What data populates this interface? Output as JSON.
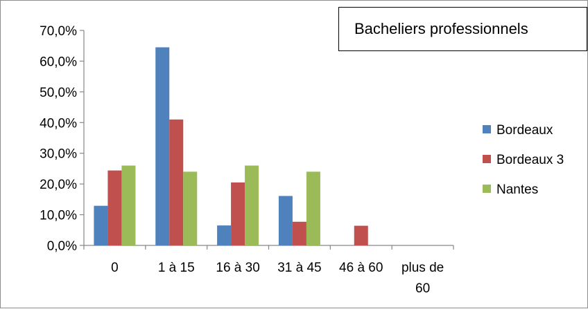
{
  "chart_data": {
    "type": "bar",
    "title": "Bacheliers professionnels",
    "categories": [
      "0",
      "1 à 15",
      "16 à 30",
      "31 à 45",
      "46 à 60",
      "plus de 60"
    ],
    "category_label_lines": [
      [
        "0"
      ],
      [
        "1 à 15"
      ],
      [
        "16 à 30"
      ],
      [
        "31 à 45"
      ],
      [
        "46 à 60"
      ],
      [
        "plus de",
        "60"
      ]
    ],
    "series": [
      {
        "name": "Bordeaux",
        "color": "#4F81BD",
        "values": [
          0.129,
          0.645,
          0.065,
          0.161,
          0.0,
          0.0
        ]
      },
      {
        "name": "Bordeaux 3",
        "color": "#C0504D",
        "values": [
          0.244,
          0.41,
          0.205,
          0.077,
          0.064,
          0.0
        ]
      },
      {
        "name": "Nantes",
        "color": "#9BBB59",
        "values": [
          0.26,
          0.24,
          0.26,
          0.24,
          0.0,
          0.0
        ]
      }
    ],
    "ylim": [
      0,
      0.7
    ],
    "yticks": [
      0,
      0.1,
      0.2,
      0.3,
      0.4,
      0.5,
      0.6,
      0.7
    ],
    "ytick_labels": [
      "0,0%",
      "10,0%",
      "20,0%",
      "30,0%",
      "40,0%",
      "50,0%",
      "60,0%",
      "70,0%"
    ],
    "xlabel": "",
    "ylabel": "",
    "grid": false,
    "legend_position": "right"
  }
}
